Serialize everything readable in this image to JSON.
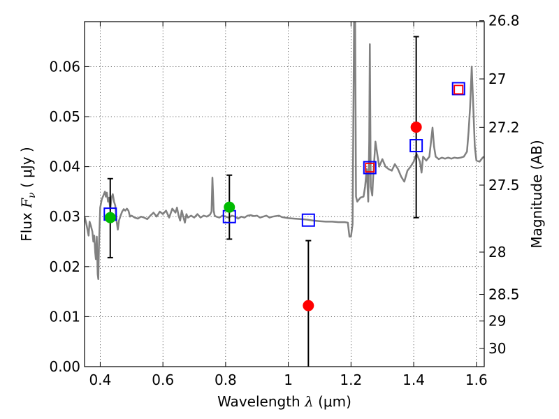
{
  "chart_data": {
    "type": "scatter",
    "xlabel_prefix": "Wavelength  ",
    "xlabel_symbol": "λ",
    "xlabel_unit": " (μm)",
    "ylabel_prefix": "Flux  ",
    "ylabel_symbol": "F",
    "ylabel_subscript": "ν",
    "ylabel_unit": "  ( μJy )",
    "y2label": "Magnitude (AB)",
    "xlim": [
      0.35,
      1.625
    ],
    "ylim": [
      0.0,
      0.069
    ],
    "grid": true,
    "x_ticks": [
      0.4,
      0.6,
      0.8,
      1.0,
      1.2,
      1.4,
      1.6
    ],
    "x_tick_labels": [
      "0.4",
      "0.6",
      "0.8",
      "1",
      "1.2",
      "1.4",
      "1.6"
    ],
    "y_ticks": [
      0.0,
      0.01,
      0.02,
      0.03,
      0.04,
      0.05,
      0.06
    ],
    "y_tick_labels": [
      "0.00",
      "0.01",
      "0.02",
      "0.03",
      "0.04",
      "0.05",
      "0.06"
    ],
    "y2_ticks": [
      {
        "label": "26.8",
        "mag": 26.8
      },
      {
        "label": "27",
        "mag": 27.0
      },
      {
        "label": "27.2",
        "mag": 27.2
      },
      {
        "label": "27.5",
        "mag": 27.5
      },
      {
        "label": "28",
        "mag": 28.0
      },
      {
        "label": "28.5",
        "mag": 28.5
      },
      {
        "label": "29",
        "mag": 29.0
      },
      {
        "label": "30",
        "mag": 30.0
      }
    ],
    "series": [
      {
        "kind": "template_spectrum",
        "color": "#808080",
        "points": [
          [
            0.35,
            0.03
          ],
          [
            0.355,
            0.0288
          ],
          [
            0.36,
            0.0272
          ],
          [
            0.363,
            0.0262
          ],
          [
            0.366,
            0.029
          ],
          [
            0.37,
            0.0282
          ],
          [
            0.375,
            0.027
          ],
          [
            0.378,
            0.025
          ],
          [
            0.381,
            0.0262
          ],
          [
            0.384,
            0.0228
          ],
          [
            0.386,
            0.0215
          ],
          [
            0.389,
            0.026
          ],
          [
            0.392,
            0.0185
          ],
          [
            0.394,
            0.0175
          ],
          [
            0.396,
            0.024
          ],
          [
            0.4,
            0.0318
          ],
          [
            0.405,
            0.0335
          ],
          [
            0.41,
            0.0342
          ],
          [
            0.415,
            0.035
          ],
          [
            0.418,
            0.034
          ],
          [
            0.421,
            0.0348
          ],
          [
            0.425,
            0.033
          ],
          [
            0.428,
            0.0338
          ],
          [
            0.432,
            0.0315
          ],
          [
            0.436,
            0.0338
          ],
          [
            0.44,
            0.0345
          ],
          [
            0.444,
            0.033
          ],
          [
            0.448,
            0.0322
          ],
          [
            0.452,
            0.0292
          ],
          [
            0.456,
            0.0274
          ],
          [
            0.46,
            0.0292
          ],
          [
            0.465,
            0.0302
          ],
          [
            0.47,
            0.031
          ],
          [
            0.475,
            0.0315
          ],
          [
            0.48,
            0.0312
          ],
          [
            0.485,
            0.0316
          ],
          [
            0.49,
            0.0312
          ],
          [
            0.495,
            0.03
          ],
          [
            0.5,
            0.0302
          ],
          [
            0.51,
            0.0298
          ],
          [
            0.52,
            0.0296
          ],
          [
            0.53,
            0.03
          ],
          [
            0.54,
            0.0298
          ],
          [
            0.55,
            0.0295
          ],
          [
            0.56,
            0.0302
          ],
          [
            0.57,
            0.0308
          ],
          [
            0.58,
            0.03
          ],
          [
            0.59,
            0.031
          ],
          [
            0.6,
            0.0305
          ],
          [
            0.61,
            0.0312
          ],
          [
            0.62,
            0.0298
          ],
          [
            0.63,
            0.0316
          ],
          [
            0.64,
            0.0308
          ],
          [
            0.645,
            0.0318
          ],
          [
            0.65,
            0.0302
          ],
          [
            0.655,
            0.0292
          ],
          [
            0.66,
            0.0312
          ],
          [
            0.665,
            0.03
          ],
          [
            0.67,
            0.0288
          ],
          [
            0.675,
            0.0305
          ],
          [
            0.68,
            0.0298
          ],
          [
            0.69,
            0.0302
          ],
          [
            0.7,
            0.0298
          ],
          [
            0.71,
            0.0305
          ],
          [
            0.72,
            0.0298
          ],
          [
            0.73,
            0.0302
          ],
          [
            0.74,
            0.03
          ],
          [
            0.75,
            0.0304
          ],
          [
            0.755,
            0.031
          ],
          [
            0.758,
            0.0378
          ],
          [
            0.762,
            0.0312
          ],
          [
            0.765,
            0.0302
          ],
          [
            0.77,
            0.03
          ],
          [
            0.78,
            0.0298
          ],
          [
            0.79,
            0.0302
          ],
          [
            0.8,
            0.03
          ],
          [
            0.81,
            0.0298
          ],
          [
            0.82,
            0.0302
          ],
          [
            0.83,
            0.03
          ],
          [
            0.84,
            0.0296
          ],
          [
            0.85,
            0.03
          ],
          [
            0.86,
            0.0298
          ],
          [
            0.87,
            0.0302
          ],
          [
            0.88,
            0.0303
          ],
          [
            0.89,
            0.0301
          ],
          [
            0.9,
            0.0302
          ],
          [
            0.91,
            0.0298
          ],
          [
            0.92,
            0.03
          ],
          [
            0.93,
            0.0302
          ],
          [
            0.94,
            0.0298
          ],
          [
            0.95,
            0.03
          ],
          [
            0.96,
            0.0301
          ],
          [
            0.97,
            0.0302
          ],
          [
            0.98,
            0.0299
          ],
          [
            0.99,
            0.0298
          ],
          [
            1.0,
            0.0297
          ],
          [
            1.02,
            0.0296
          ],
          [
            1.04,
            0.0295
          ],
          [
            1.06,
            0.0294
          ],
          [
            1.08,
            0.0292
          ],
          [
            1.1,
            0.0291
          ],
          [
            1.12,
            0.029
          ],
          [
            1.14,
            0.029
          ],
          [
            1.16,
            0.0289
          ],
          [
            1.18,
            0.0289
          ],
          [
            1.19,
            0.0288
          ],
          [
            1.195,
            0.026
          ],
          [
            1.2,
            0.026
          ],
          [
            1.205,
            0.0285
          ],
          [
            1.21,
            0.07
          ],
          [
            1.213,
            0.07
          ],
          [
            1.216,
            0.034
          ],
          [
            1.22,
            0.033
          ],
          [
            1.23,
            0.0338
          ],
          [
            1.24,
            0.034
          ],
          [
            1.245,
            0.036
          ],
          [
            1.25,
            0.0395
          ],
          [
            1.255,
            0.033
          ],
          [
            1.258,
            0.045
          ],
          [
            1.26,
            0.0645
          ],
          [
            1.263,
            0.036
          ],
          [
            1.268,
            0.0342
          ],
          [
            1.27,
            0.037
          ],
          [
            1.278,
            0.045
          ],
          [
            1.285,
            0.042
          ],
          [
            1.29,
            0.04
          ],
          [
            1.3,
            0.0415
          ],
          [
            1.31,
            0.04
          ],
          [
            1.32,
            0.0395
          ],
          [
            1.33,
            0.0392
          ],
          [
            1.34,
            0.0405
          ],
          [
            1.35,
            0.0395
          ],
          [
            1.36,
            0.038
          ],
          [
            1.37,
            0.037
          ],
          [
            1.38,
            0.0392
          ],
          [
            1.39,
            0.04
          ],
          [
            1.4,
            0.041
          ],
          [
            1.405,
            0.042
          ],
          [
            1.41,
            0.0425
          ],
          [
            1.42,
            0.041
          ],
          [
            1.425,
            0.0388
          ],
          [
            1.43,
            0.042
          ],
          [
            1.44,
            0.0412
          ],
          [
            1.45,
            0.042
          ],
          [
            1.46,
            0.0478
          ],
          [
            1.465,
            0.044
          ],
          [
            1.47,
            0.042
          ],
          [
            1.48,
            0.0415
          ],
          [
            1.49,
            0.0418
          ],
          [
            1.5,
            0.0416
          ],
          [
            1.51,
            0.0418
          ],
          [
            1.52,
            0.0416
          ],
          [
            1.53,
            0.0418
          ],
          [
            1.54,
            0.0417
          ],
          [
            1.55,
            0.0418
          ],
          [
            1.56,
            0.042
          ],
          [
            1.57,
            0.043
          ],
          [
            1.575,
            0.047
          ],
          [
            1.58,
            0.052
          ],
          [
            1.585,
            0.06
          ],
          [
            1.59,
            0.052
          ],
          [
            1.595,
            0.044
          ],
          [
            1.6,
            0.0412
          ],
          [
            1.61,
            0.041
          ],
          [
            1.62,
            0.0418
          ],
          [
            1.625,
            0.042
          ]
        ]
      },
      {
        "kind": "model_points",
        "marker": "square",
        "color": "#0000ff",
        "points": [
          [
            0.432,
            0.0305
          ],
          [
            0.812,
            0.03
          ],
          [
            1.064,
            0.0293
          ],
          [
            1.26,
            0.0398
          ],
          [
            1.408,
            0.0442
          ],
          [
            1.543,
            0.0556
          ]
        ]
      },
      {
        "kind": "model_points_small",
        "marker": "square",
        "color": "#ff0000",
        "points": [
          [
            1.26,
            0.0398
          ],
          [
            1.543,
            0.0554
          ]
        ]
      },
      {
        "kind": "detections",
        "marker": "circle",
        "color": "#00bb00",
        "points": [
          [
            0.432,
            0.0298
          ],
          [
            0.812,
            0.0319
          ]
        ]
      },
      {
        "kind": "upper_limits",
        "marker": "circle",
        "color": "#ff0000",
        "points": [
          [
            1.064,
            0.0122
          ],
          [
            1.408,
            0.0479
          ]
        ]
      }
    ],
    "error_bars": [
      {
        "x": 0.432,
        "low": 0.0218,
        "high": 0.0376
      },
      {
        "x": 0.812,
        "low": 0.0255,
        "high": 0.0383
      },
      {
        "x": 1.064,
        "low": 0.0,
        "high": 0.0252
      },
      {
        "x": 1.408,
        "low": 0.0298,
        "high": 0.066
      }
    ]
  }
}
